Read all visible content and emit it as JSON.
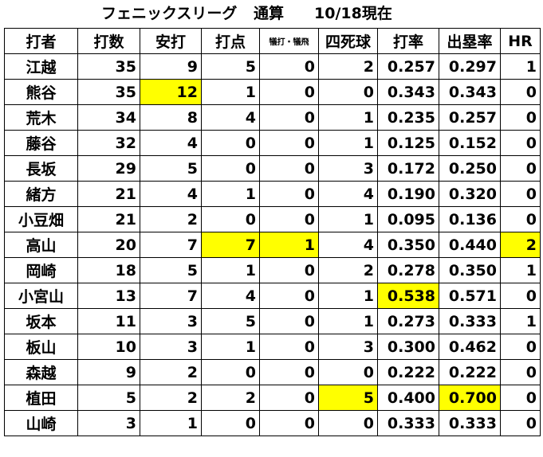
{
  "title": {
    "league": "フェニックスリーグ",
    "scope": "通算",
    "date": "10/18現在"
  },
  "colors": {
    "highlight": "#ffff00",
    "grid": "#000000"
  },
  "columns": [
    "打者",
    "打数",
    "安打",
    "打点",
    "犠打・犠飛",
    "四死球",
    "打率",
    "出塁率",
    "HR"
  ],
  "rows": [
    {
      "name": "江越",
      "cells": [
        "35",
        "9",
        "5",
        "0",
        "2",
        "0.257",
        "0.297",
        "1"
      ],
      "highlight": []
    },
    {
      "name": "熊谷",
      "cells": [
        "35",
        "12",
        "1",
        "0",
        "0",
        "0.343",
        "0.343",
        "0"
      ],
      "highlight": [
        1
      ]
    },
    {
      "name": "荒木",
      "cells": [
        "34",
        "8",
        "4",
        "0",
        "1",
        "0.235",
        "0.257",
        "0"
      ],
      "highlight": []
    },
    {
      "name": "藤谷",
      "cells": [
        "32",
        "4",
        "0",
        "0",
        "1",
        "0.125",
        "0.152",
        "0"
      ],
      "highlight": []
    },
    {
      "name": "長坂",
      "cells": [
        "29",
        "5",
        "0",
        "0",
        "3",
        "0.172",
        "0.250",
        "0"
      ],
      "highlight": []
    },
    {
      "name": "緒方",
      "cells": [
        "21",
        "4",
        "1",
        "0",
        "4",
        "0.190",
        "0.320",
        "0"
      ],
      "highlight": []
    },
    {
      "name": "小豆畑",
      "cells": [
        "21",
        "2",
        "0",
        "0",
        "1",
        "0.095",
        "0.136",
        "0"
      ],
      "highlight": []
    },
    {
      "name": "高山",
      "cells": [
        "20",
        "7",
        "7",
        "1",
        "4",
        "0.350",
        "0.440",
        "2"
      ],
      "highlight": [
        2,
        3,
        7
      ]
    },
    {
      "name": "岡崎",
      "cells": [
        "18",
        "5",
        "1",
        "0",
        "2",
        "0.278",
        "0.350",
        "1"
      ],
      "highlight": []
    },
    {
      "name": "小宮山",
      "cells": [
        "13",
        "7",
        "4",
        "0",
        "1",
        "0.538",
        "0.571",
        "0"
      ],
      "highlight": [
        5
      ]
    },
    {
      "name": "坂本",
      "cells": [
        "11",
        "3",
        "5",
        "0",
        "1",
        "0.273",
        "0.333",
        "1"
      ],
      "highlight": []
    },
    {
      "name": "板山",
      "cells": [
        "10",
        "3",
        "1",
        "0",
        "3",
        "0.300",
        "0.462",
        "0"
      ],
      "highlight": []
    },
    {
      "name": "森越",
      "cells": [
        "9",
        "2",
        "0",
        "0",
        "0",
        "0.222",
        "0.222",
        "0"
      ],
      "highlight": []
    },
    {
      "name": "植田",
      "cells": [
        "5",
        "2",
        "2",
        "0",
        "5",
        "0.400",
        "0.700",
        "0"
      ],
      "highlight": [
        4,
        6
      ]
    },
    {
      "name": "山崎",
      "cells": [
        "3",
        "1",
        "0",
        "0",
        "0",
        "0.333",
        "0.333",
        "0"
      ],
      "highlight": []
    }
  ]
}
